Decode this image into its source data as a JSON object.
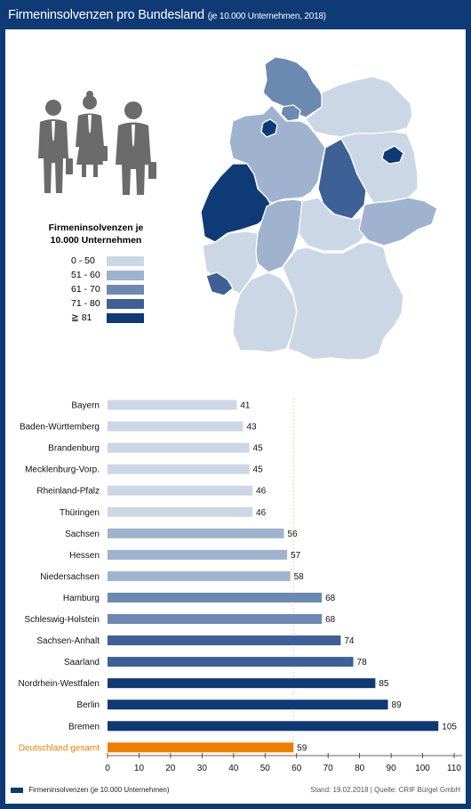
{
  "header": {
    "title": "Firmeninsolvenzen pro Bundesland",
    "subtitle": "(je 10.000 Unternehmen, 2018)"
  },
  "icons": {
    "people": "business-people-icon"
  },
  "legend": {
    "title_line1": "Firmeninsolvenzen je",
    "title_line2": "10.000 Unternehmen",
    "items": [
      {
        "label": "0 - 50",
        "color": "#ccd7e6"
      },
      {
        "label": "51 - 60",
        "color": "#9fb3cf"
      },
      {
        "label": "61 - 70",
        "color": "#6c89b2"
      },
      {
        "label": "71 - 80",
        "color": "#3d6096"
      },
      {
        "label": "≧ 81",
        "color": "#0e3a75"
      }
    ]
  },
  "chart_data": {
    "type": "bar",
    "orientation": "horizontal",
    "categories": [
      "Bayern",
      "Baden-Württemberg",
      "Brandenburg",
      "Mecklenburg-Vorp.",
      "Rheinland-Pfalz",
      "Thüringen",
      "Sachsen",
      "Hessen",
      "Niedersachsen",
      "Hamburg",
      "Schleswig-Holstein",
      "Sachsen-Anhalt",
      "Saarland",
      "Nordrhein-Westfalen",
      "Berlin",
      "Bremen",
      "Deutschland gesamt"
    ],
    "values": [
      41,
      43,
      45,
      45,
      46,
      46,
      56,
      57,
      58,
      68,
      68,
      74,
      78,
      85,
      89,
      105,
      59
    ],
    "bar_colors": [
      "#ccd7e6",
      "#ccd7e6",
      "#ccd7e6",
      "#ccd7e6",
      "#ccd7e6",
      "#ccd7e6",
      "#9fb3cf",
      "#9fb3cf",
      "#9fb3cf",
      "#6c89b2",
      "#6c89b2",
      "#3d6096",
      "#3d6096",
      "#0e3a75",
      "#0e3a75",
      "#0e3a75",
      "#ef7d00"
    ],
    "highlight_label_color": "#ef7d00",
    "xlim": [
      0,
      110
    ],
    "xticks": [
      0,
      10,
      20,
      30,
      40,
      50,
      60,
      70,
      80,
      90,
      100,
      110
    ],
    "reference_line": 59,
    "series": [
      {
        "name": "Firmeninsolvenzen (je 10.000 Unternehmen)",
        "color": "#0e3a75"
      }
    ],
    "legend_position": "bottom-left"
  },
  "map": {
    "regions": [
      {
        "name": "Schleswig-Holstein",
        "color": "#6c89b2"
      },
      {
        "name": "Hamburg",
        "color": "#6c89b2"
      },
      {
        "name": "Mecklenburg-Vorp.",
        "color": "#ccd7e6"
      },
      {
        "name": "Niedersachsen",
        "color": "#9fb3cf"
      },
      {
        "name": "Bremen",
        "color": "#0e3a75"
      },
      {
        "name": "Berlin",
        "color": "#0e3a75"
      },
      {
        "name": "Brandenburg",
        "color": "#ccd7e6"
      },
      {
        "name": "Sachsen-Anhalt",
        "color": "#3d6096"
      },
      {
        "name": "Nordrhein-Westfalen",
        "color": "#0e3a75"
      },
      {
        "name": "Hessen",
        "color": "#9fb3cf"
      },
      {
        "name": "Thüringen",
        "color": "#ccd7e6"
      },
      {
        "name": "Sachsen",
        "color": "#9fb3cf"
      },
      {
        "name": "Rheinland-Pfalz",
        "color": "#ccd7e6"
      },
      {
        "name": "Saarland",
        "color": "#3d6096"
      },
      {
        "name": "Baden-Württemberg",
        "color": "#ccd7e6"
      },
      {
        "name": "Bayern",
        "color": "#ccd7e6"
      }
    ]
  },
  "footer": {
    "legend_label": "Firmeninsolvenzen (je 10.000 Unternehmen)",
    "source": "Stand: 19.02.2018 | Quelle: CRIF Bürgel GmbH"
  }
}
